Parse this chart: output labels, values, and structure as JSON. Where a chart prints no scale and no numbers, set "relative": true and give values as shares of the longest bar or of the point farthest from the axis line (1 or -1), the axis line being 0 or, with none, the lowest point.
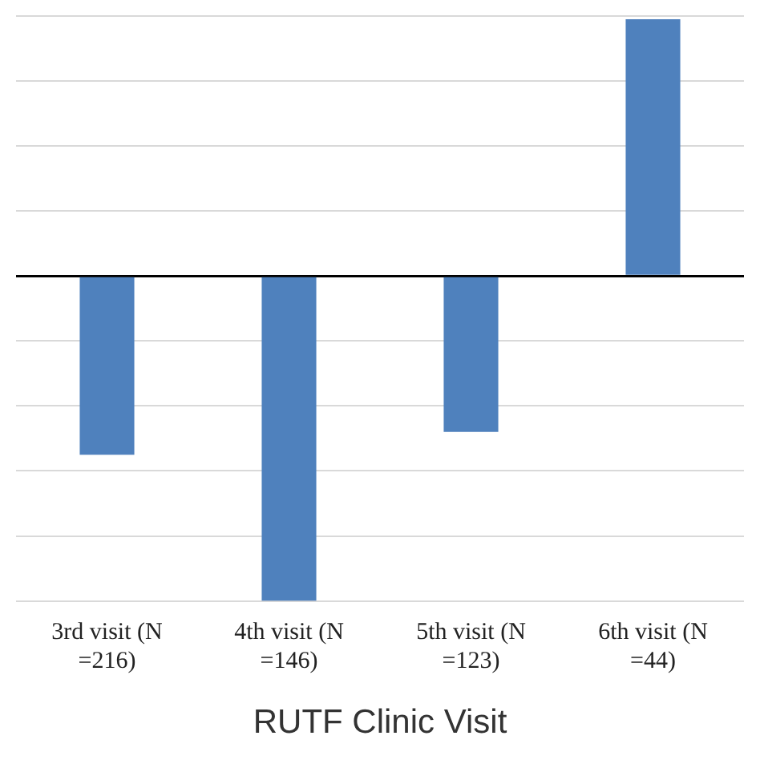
{
  "chart_data": {
    "type": "bar",
    "relative": true,
    "xlabel": "RUTF Clinic Visit",
    "categories": [
      "3rd visit (N =216)",
      "4th visit (N =146)",
      "5th visit (N =123)",
      "6th visit (N =44)"
    ],
    "values": [
      -0.55,
      -1,
      -0.48,
      0.79
    ],
    "color": "#4f81bd",
    "grid": "y",
    "legend": false
  }
}
